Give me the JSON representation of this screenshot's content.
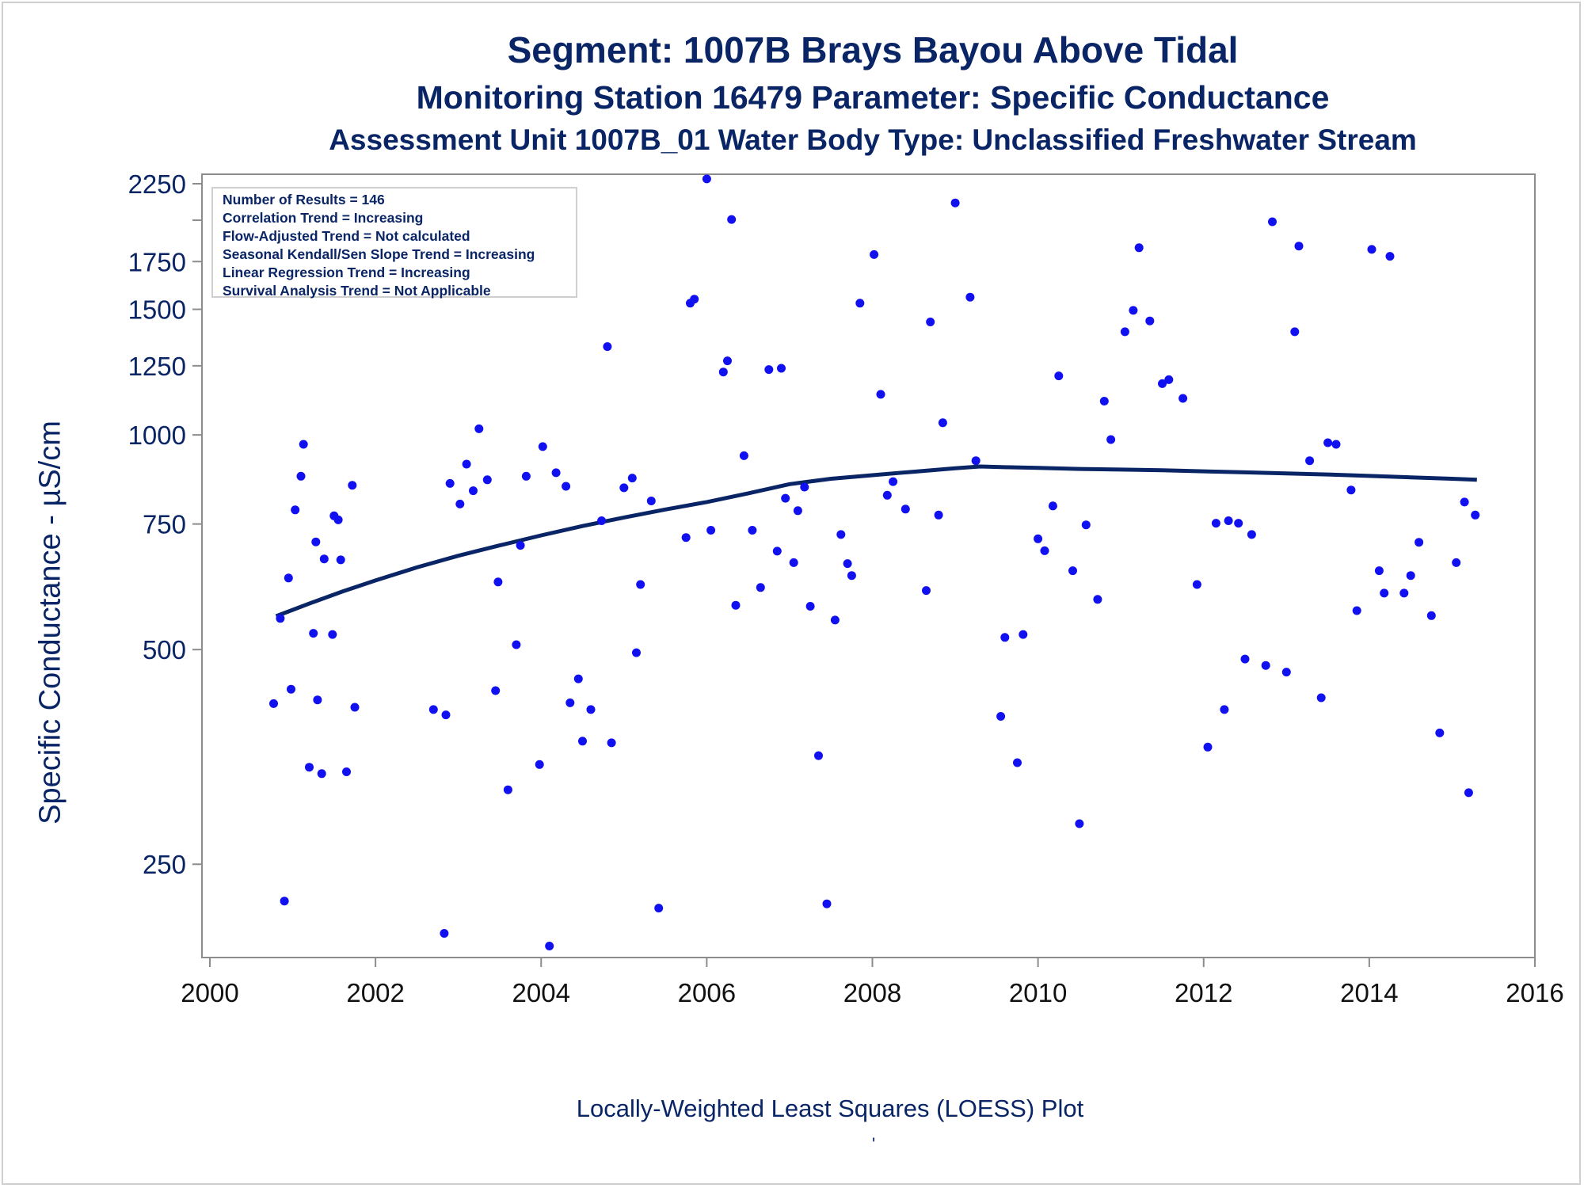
{
  "title": {
    "line1": "Segment: 1007B  Brays Bayou Above Tidal",
    "line2": "Monitoring Station 16479 Parameter: Specific Conductance",
    "line3": "Assessment Unit 1007B_01   Water Body Type: Unclassified Freshwater Stream"
  },
  "stats": [
    "Number of Results = 146",
    "Correlation Trend = Increasing",
    "Flow-Adjusted Trend = Not calculated",
    "Seasonal Kendall/Sen Slope Trend = Increasing",
    "Linear Regression Trend = Increasing",
    "Survival Analysis Trend = Not Applicable"
  ],
  "footnote": "Locally-Weighted Least Squares (LOESS) Plot",
  "stray_mark": "'",
  "colors": {
    "text": "#0a2566",
    "points": "#1010f0",
    "loess": "#0a2566",
    "axis": "#8c8c8c"
  },
  "chart_data": {
    "type": "scatter",
    "title": "Segment: 1007B  Brays Bayou Above Tidal",
    "xlabel": "",
    "ylabel": "Specific Conductance -  µS/cm",
    "xlim": [
      2000,
      2016
    ],
    "ylim": [
      185,
      2320
    ],
    "y_scale": "log",
    "xticks": [
      2000,
      2002,
      2004,
      2006,
      2008,
      2010,
      2012,
      2014,
      2016
    ],
    "yticks": [
      250,
      500,
      750,
      1000,
      1250,
      1500,
      1750,
      2250
    ],
    "ytick_labels": [
      "250",
      "500",
      "750",
      "1000",
      "1250",
      "1500",
      "1750",
      "2250"
    ],
    "grid": false,
    "legend": "none",
    "points": [
      [
        2000.77,
        420
      ],
      [
        2000.85,
        553
      ],
      [
        2000.9,
        222
      ],
      [
        2000.95,
        630
      ],
      [
        2000.98,
        440
      ],
      [
        2001.03,
        785
      ],
      [
        2001.1,
        875
      ],
      [
        2001.13,
        970
      ],
      [
        2001.2,
        342
      ],
      [
        2001.25,
        527
      ],
      [
        2001.3,
        425
      ],
      [
        2001.28,
        708
      ],
      [
        2001.35,
        335
      ],
      [
        2001.38,
        670
      ],
      [
        2001.48,
        525
      ],
      [
        2001.5,
        770
      ],
      [
        2001.55,
        760
      ],
      [
        2001.58,
        668
      ],
      [
        2001.65,
        337
      ],
      [
        2001.72,
        850
      ],
      [
        2001.75,
        415
      ],
      [
        2002.7,
        412
      ],
      [
        2002.83,
        200
      ],
      [
        2002.85,
        405
      ],
      [
        2002.9,
        855
      ],
      [
        2003.02,
        800
      ],
      [
        2003.1,
        910
      ],
      [
        2003.18,
        835
      ],
      [
        2003.25,
        1020
      ],
      [
        2003.35,
        865
      ],
      [
        2003.45,
        438
      ],
      [
        2003.48,
        622
      ],
      [
        2003.6,
        318
      ],
      [
        2003.7,
        508
      ],
      [
        2003.75,
        700
      ],
      [
        2003.82,
        875
      ],
      [
        2003.98,
        345
      ],
      [
        2004.02,
        963
      ],
      [
        2004.1,
        192
      ],
      [
        2004.18,
        885
      ],
      [
        2004.3,
        847
      ],
      [
        2004.35,
        421
      ],
      [
        2004.45,
        455
      ],
      [
        2004.5,
        372
      ],
      [
        2004.6,
        412
      ],
      [
        2004.73,
        758
      ],
      [
        2004.8,
        1330
      ],
      [
        2004.85,
        370
      ],
      [
        2005.0,
        843
      ],
      [
        2005.1,
        870
      ],
      [
        2005.15,
        495
      ],
      [
        2005.2,
        617
      ],
      [
        2005.33,
        808
      ],
      [
        2005.42,
        217
      ],
      [
        2005.75,
        718
      ],
      [
        2005.8,
        1530
      ],
      [
        2005.85,
        1550
      ],
      [
        2006.0,
        2285
      ],
      [
        2006.05,
        735
      ],
      [
        2006.2,
        1225
      ],
      [
        2006.25,
        1270
      ],
      [
        2006.3,
        2005
      ],
      [
        2006.35,
        577
      ],
      [
        2006.45,
        935
      ],
      [
        2006.55,
        735
      ],
      [
        2006.65,
        611
      ],
      [
        2006.75,
        1235
      ],
      [
        2006.85,
        687
      ],
      [
        2006.9,
        1240
      ],
      [
        2006.95,
        815
      ],
      [
        2007.05,
        662
      ],
      [
        2007.1,
        783
      ],
      [
        2007.18,
        845
      ],
      [
        2007.25,
        575
      ],
      [
        2007.35,
        355
      ],
      [
        2007.45,
        220
      ],
      [
        2007.55,
        550
      ],
      [
        2007.62,
        725
      ],
      [
        2007.7,
        660
      ],
      [
        2007.75,
        635
      ],
      [
        2007.85,
        1530
      ],
      [
        2008.02,
        1790
      ],
      [
        2008.1,
        1140
      ],
      [
        2008.18,
        823
      ],
      [
        2008.25,
        860
      ],
      [
        2008.4,
        787
      ],
      [
        2008.65,
        605
      ],
      [
        2008.7,
        1440
      ],
      [
        2008.8,
        772
      ],
      [
        2008.85,
        1040
      ],
      [
        2009.0,
        2115
      ],
      [
        2009.18,
        1560
      ],
      [
        2009.25,
        920
      ],
      [
        2009.55,
        403
      ],
      [
        2009.6,
        520
      ],
      [
        2009.75,
        347
      ],
      [
        2009.82,
        525
      ],
      [
        2010.0,
        715
      ],
      [
        2010.08,
        688
      ],
      [
        2010.18,
        795
      ],
      [
        2010.25,
        1210
      ],
      [
        2010.42,
        645
      ],
      [
        2010.5,
        285
      ],
      [
        2010.58,
        748
      ],
      [
        2010.72,
        588
      ],
      [
        2010.8,
        1115
      ],
      [
        2010.88,
        985
      ],
      [
        2011.05,
        1395
      ],
      [
        2011.15,
        1495
      ],
      [
        2011.22,
        1830
      ],
      [
        2011.35,
        1445
      ],
      [
        2011.5,
        1180
      ],
      [
        2011.58,
        1195
      ],
      [
        2011.75,
        1125
      ],
      [
        2011.92,
        617
      ],
      [
        2012.05,
        365
      ],
      [
        2012.15,
        752
      ],
      [
        2012.25,
        412
      ],
      [
        2012.3,
        758
      ],
      [
        2012.42,
        752
      ],
      [
        2012.5,
        485
      ],
      [
        2012.58,
        725
      ],
      [
        2012.75,
        475
      ],
      [
        2012.83,
        1990
      ],
      [
        2013.0,
        465
      ],
      [
        2013.1,
        1395
      ],
      [
        2013.15,
        1840
      ],
      [
        2013.28,
        920
      ],
      [
        2013.42,
        428
      ],
      [
        2013.5,
        975
      ],
      [
        2013.6,
        970
      ],
      [
        2013.78,
        837
      ],
      [
        2013.85,
        567
      ],
      [
        2014.03,
        1820
      ],
      [
        2014.12,
        645
      ],
      [
        2014.18,
        600
      ],
      [
        2014.25,
        1780
      ],
      [
        2014.42,
        600
      ],
      [
        2014.5,
        635
      ],
      [
        2014.6,
        707
      ],
      [
        2014.75,
        558
      ],
      [
        2014.85,
        382
      ],
      [
        2015.05,
        662
      ],
      [
        2015.15,
        805
      ],
      [
        2015.2,
        315
      ],
      [
        2015.28,
        772
      ]
    ],
    "loess": [
      [
        2000.8,
        557
      ],
      [
        2001.2,
        580
      ],
      [
        2001.6,
        603
      ],
      [
        2002.0,
        625
      ],
      [
        2002.5,
        652
      ],
      [
        2003.0,
        677
      ],
      [
        2003.5,
        700
      ],
      [
        2004.0,
        723
      ],
      [
        2004.5,
        745
      ],
      [
        2005.0,
        766
      ],
      [
        2005.5,
        786
      ],
      [
        2006.0,
        805
      ],
      [
        2006.5,
        828
      ],
      [
        2007.0,
        853
      ],
      [
        2007.5,
        868
      ],
      [
        2008.0,
        878
      ],
      [
        2008.5,
        888
      ],
      [
        2009.0,
        898
      ],
      [
        2009.3,
        903
      ],
      [
        2009.6,
        901
      ],
      [
        2010.0,
        899
      ],
      [
        2010.5,
        896
      ],
      [
        2011.0,
        894
      ],
      [
        2011.5,
        892
      ],
      [
        2012.0,
        889
      ],
      [
        2012.5,
        886
      ],
      [
        2013.0,
        883
      ],
      [
        2013.5,
        880
      ],
      [
        2014.0,
        876
      ],
      [
        2014.5,
        872
      ],
      [
        2015.0,
        868
      ],
      [
        2015.3,
        865
      ]
    ]
  }
}
